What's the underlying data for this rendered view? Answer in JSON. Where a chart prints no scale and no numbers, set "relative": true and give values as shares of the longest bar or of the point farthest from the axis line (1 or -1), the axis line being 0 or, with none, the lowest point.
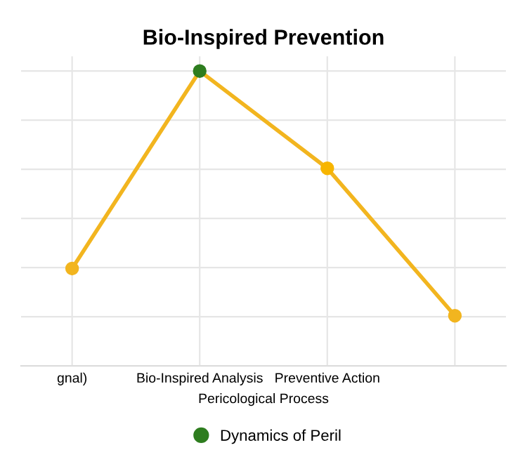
{
  "chart_data": {
    "type": "line",
    "title": "Bio-Inspired Prevention",
    "xlabel": "Pericological Process",
    "categories": [
      "gnal)",
      "Bio-Inspired Analysis",
      "Preventive Action",
      null
    ],
    "relative": true,
    "grid": true,
    "legend": "bottom",
    "marker": "circle",
    "series": [
      {
        "name": "Dynamics of Peril",
        "color": "#f2b51f",
        "colors": [
          "#f2b51f",
          "#2e7d1f",
          "#f7b500",
          "#f2b51f"
        ],
        "values": [
          0.33,
          1,
          0.67,
          0.17
        ]
      }
    ]
  }
}
